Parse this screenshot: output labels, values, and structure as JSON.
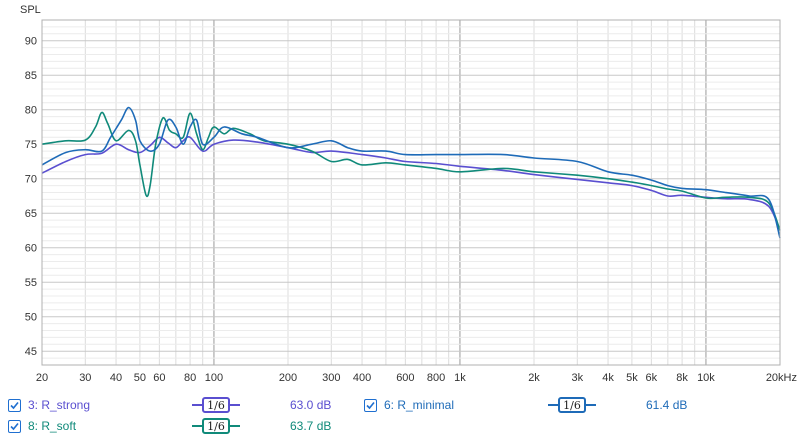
{
  "chart_data": {
    "type": "line",
    "ylabel": "SPL",
    "x_scale": "log",
    "xlim": [
      20,
      20000
    ],
    "ylim": [
      43,
      93
    ],
    "y_ticks": [
      45,
      50,
      55,
      60,
      65,
      70,
      75,
      80,
      85,
      90
    ],
    "x_ticks": [
      {
        "v": 20,
        "label": "20"
      },
      {
        "v": 30,
        "label": "30"
      },
      {
        "v": 40,
        "label": "40"
      },
      {
        "v": 50,
        "label": "50"
      },
      {
        "v": 60,
        "label": "60"
      },
      {
        "v": 80,
        "label": "80"
      },
      {
        "v": 100,
        "label": "100"
      },
      {
        "v": 200,
        "label": "200"
      },
      {
        "v": 300,
        "label": "300"
      },
      {
        "v": 400,
        "label": "400"
      },
      {
        "v": 600,
        "label": "600"
      },
      {
        "v": 800,
        "label": "800"
      },
      {
        "v": 1000,
        "label": "1k"
      },
      {
        "v": 2000,
        "label": "2k"
      },
      {
        "v": 3000,
        "label": "3k"
      },
      {
        "v": 4000,
        "label": "4k"
      },
      {
        "v": 5000,
        "label": "5k"
      },
      {
        "v": 6000,
        "label": "6k"
      },
      {
        "v": 8000,
        "label": "8k"
      },
      {
        "v": 10000,
        "label": "10k"
      },
      {
        "v": 20000,
        "label": "20kHz"
      }
    ],
    "grid": true,
    "series": [
      {
        "name": "R_strong",
        "color": "#5a4fd0",
        "points": [
          [
            20,
            70.8
          ],
          [
            25,
            72.5
          ],
          [
            30,
            73.5
          ],
          [
            35,
            73.7
          ],
          [
            40,
            75.0
          ],
          [
            45,
            74.2
          ],
          [
            50,
            73.8
          ],
          [
            55,
            74.8
          ],
          [
            60,
            76.0
          ],
          [
            65,
            75.2
          ],
          [
            70,
            74.5
          ],
          [
            75,
            75.5
          ],
          [
            80,
            76.0
          ],
          [
            90,
            74.0
          ],
          [
            100,
            75.0
          ],
          [
            120,
            75.6
          ],
          [
            150,
            75.3
          ],
          [
            200,
            74.5
          ],
          [
            250,
            73.8
          ],
          [
            300,
            74.0
          ],
          [
            400,
            73.5
          ],
          [
            500,
            73.0
          ],
          [
            600,
            72.5
          ],
          [
            800,
            72.2
          ],
          [
            1000,
            71.8
          ],
          [
            1500,
            71.2
          ],
          [
            2000,
            70.6
          ],
          [
            3000,
            69.9
          ],
          [
            4000,
            69.4
          ],
          [
            5000,
            69.0
          ],
          [
            6000,
            68.3
          ],
          [
            7000,
            67.5
          ],
          [
            8000,
            67.6
          ],
          [
            10000,
            67.3
          ],
          [
            12000,
            67.1
          ],
          [
            15000,
            67.0
          ],
          [
            18000,
            66.0
          ],
          [
            20000,
            62.5
          ]
        ]
      },
      {
        "name": "R_soft",
        "color": "#108a7a",
        "points": [
          [
            20,
            75.0
          ],
          [
            25,
            75.5
          ],
          [
            30,
            75.6
          ],
          [
            33,
            77.5
          ],
          [
            35,
            79.6
          ],
          [
            37,
            78.0
          ],
          [
            40,
            75.5
          ],
          [
            45,
            77.0
          ],
          [
            48,
            75.5
          ],
          [
            50,
            72.0
          ],
          [
            53,
            67.6
          ],
          [
            55,
            69.0
          ],
          [
            58,
            75.0
          ],
          [
            62,
            78.8
          ],
          [
            66,
            77.0
          ],
          [
            70,
            76.5
          ],
          [
            75,
            76.0
          ],
          [
            80,
            79.5
          ],
          [
            85,
            76.5
          ],
          [
            90,
            74.2
          ],
          [
            95,
            76.0
          ],
          [
            100,
            77.5
          ],
          [
            110,
            76.5
          ],
          [
            120,
            77.3
          ],
          [
            140,
            76.5
          ],
          [
            160,
            75.5
          ],
          [
            200,
            75.0
          ],
          [
            250,
            74.0
          ],
          [
            300,
            72.5
          ],
          [
            350,
            72.8
          ],
          [
            400,
            72.0
          ],
          [
            500,
            72.3
          ],
          [
            600,
            72.0
          ],
          [
            800,
            71.5
          ],
          [
            1000,
            71.0
          ],
          [
            1500,
            71.5
          ],
          [
            2000,
            71.0
          ],
          [
            3000,
            70.5
          ],
          [
            4000,
            70.0
          ],
          [
            5000,
            69.5
          ],
          [
            6000,
            69.0
          ],
          [
            7000,
            68.5
          ],
          [
            8000,
            68.2
          ],
          [
            10000,
            67.2
          ],
          [
            12000,
            67.3
          ],
          [
            15000,
            67.3
          ],
          [
            18000,
            66.5
          ],
          [
            20000,
            62.5
          ]
        ]
      },
      {
        "name": "R_minimal",
        "color": "#1e6bb8",
        "points": [
          [
            20,
            72.0
          ],
          [
            25,
            73.8
          ],
          [
            30,
            74.2
          ],
          [
            35,
            74.0
          ],
          [
            38,
            76.0
          ],
          [
            42,
            78.5
          ],
          [
            45,
            80.3
          ],
          [
            48,
            78.5
          ],
          [
            50,
            75.5
          ],
          [
            55,
            74.0
          ],
          [
            60,
            75.0
          ],
          [
            65,
            78.5
          ],
          [
            70,
            77.5
          ],
          [
            75,
            75.0
          ],
          [
            80,
            77.5
          ],
          [
            85,
            78.5
          ],
          [
            90,
            75.0
          ],
          [
            100,
            76.0
          ],
          [
            110,
            77.5
          ],
          [
            130,
            76.5
          ],
          [
            150,
            76.0
          ],
          [
            200,
            74.5
          ],
          [
            250,
            75.0
          ],
          [
            300,
            75.5
          ],
          [
            350,
            74.5
          ],
          [
            400,
            74.0
          ],
          [
            500,
            74.0
          ],
          [
            600,
            73.5
          ],
          [
            800,
            73.5
          ],
          [
            1000,
            73.5
          ],
          [
            1500,
            73.5
          ],
          [
            2000,
            73.0
          ],
          [
            3000,
            72.5
          ],
          [
            4000,
            71.0
          ],
          [
            5000,
            70.5
          ],
          [
            6000,
            69.8
          ],
          [
            7000,
            69.0
          ],
          [
            8000,
            68.6
          ],
          [
            10000,
            68.4
          ],
          [
            12000,
            68.0
          ],
          [
            15000,
            67.5
          ],
          [
            18000,
            67.0
          ],
          [
            20000,
            61.4
          ]
        ]
      }
    ]
  },
  "legend": {
    "items": [
      {
        "label": "3: R_strong",
        "smoothing": "1/6",
        "level": "63.0 dB",
        "color": "#5a4fd0"
      },
      {
        "label": "8: R_soft",
        "smoothing": "1/6",
        "level": "63.7 dB",
        "color": "#108a7a"
      },
      {
        "label": "6: R_minimal",
        "smoothing": "1/6",
        "level": "61.4 dB",
        "color": "#1e6bb8"
      }
    ]
  }
}
